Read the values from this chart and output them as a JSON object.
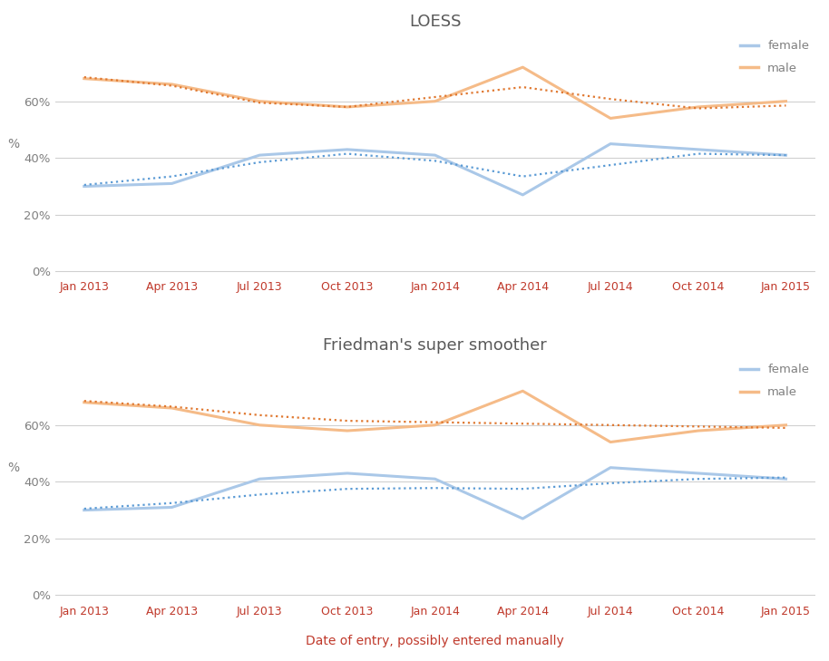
{
  "x_labels": [
    "Jan 2013",
    "Apr 2013",
    "Jul 2013",
    "Oct 2013",
    "Jan 2014",
    "Apr 2014",
    "Jul 2014",
    "Oct 2014",
    "Jan 2015"
  ],
  "x_positions": [
    0,
    3,
    6,
    9,
    12,
    15,
    18,
    21,
    24
  ],
  "female_raw": [
    0.3,
    0.31,
    0.41,
    0.43,
    0.41,
    0.27,
    0.45,
    0.43,
    0.41
  ],
  "male_raw": [
    0.68,
    0.66,
    0.6,
    0.58,
    0.6,
    0.72,
    0.54,
    0.58,
    0.6
  ],
  "female_loess": [
    0.305,
    0.335,
    0.385,
    0.415,
    0.39,
    0.335,
    0.375,
    0.415,
    0.41
  ],
  "male_loess": [
    0.685,
    0.655,
    0.595,
    0.58,
    0.615,
    0.65,
    0.608,
    0.575,
    0.585
  ],
  "female_supsmu": [
    0.305,
    0.325,
    0.355,
    0.375,
    0.378,
    0.375,
    0.395,
    0.41,
    0.415
  ],
  "male_supsmu": [
    0.685,
    0.665,
    0.635,
    0.615,
    0.61,
    0.605,
    0.6,
    0.595,
    0.59
  ],
  "title1": "LOESS",
  "title2": "Friedman's super smoother",
  "xlabel": "Date of entry, possibly entered manually",
  "ylabel": "%",
  "female_color": "#aac8e8",
  "male_color": "#f5bb88",
  "female_dot_color": "#5b9bd5",
  "male_dot_color": "#e07830",
  "title_color": "#595959",
  "axis_label_color": "#808080",
  "tick_color": "#c0392b",
  "xlabel_color": "#c0392b",
  "grid_color": "#d0d0d0",
  "yticks": [
    0.0,
    0.2,
    0.4,
    0.6
  ],
  "ytick_labels": [
    "0%",
    "20%",
    "40%",
    "60%"
  ],
  "ylim": [
    -0.02,
    0.82
  ]
}
